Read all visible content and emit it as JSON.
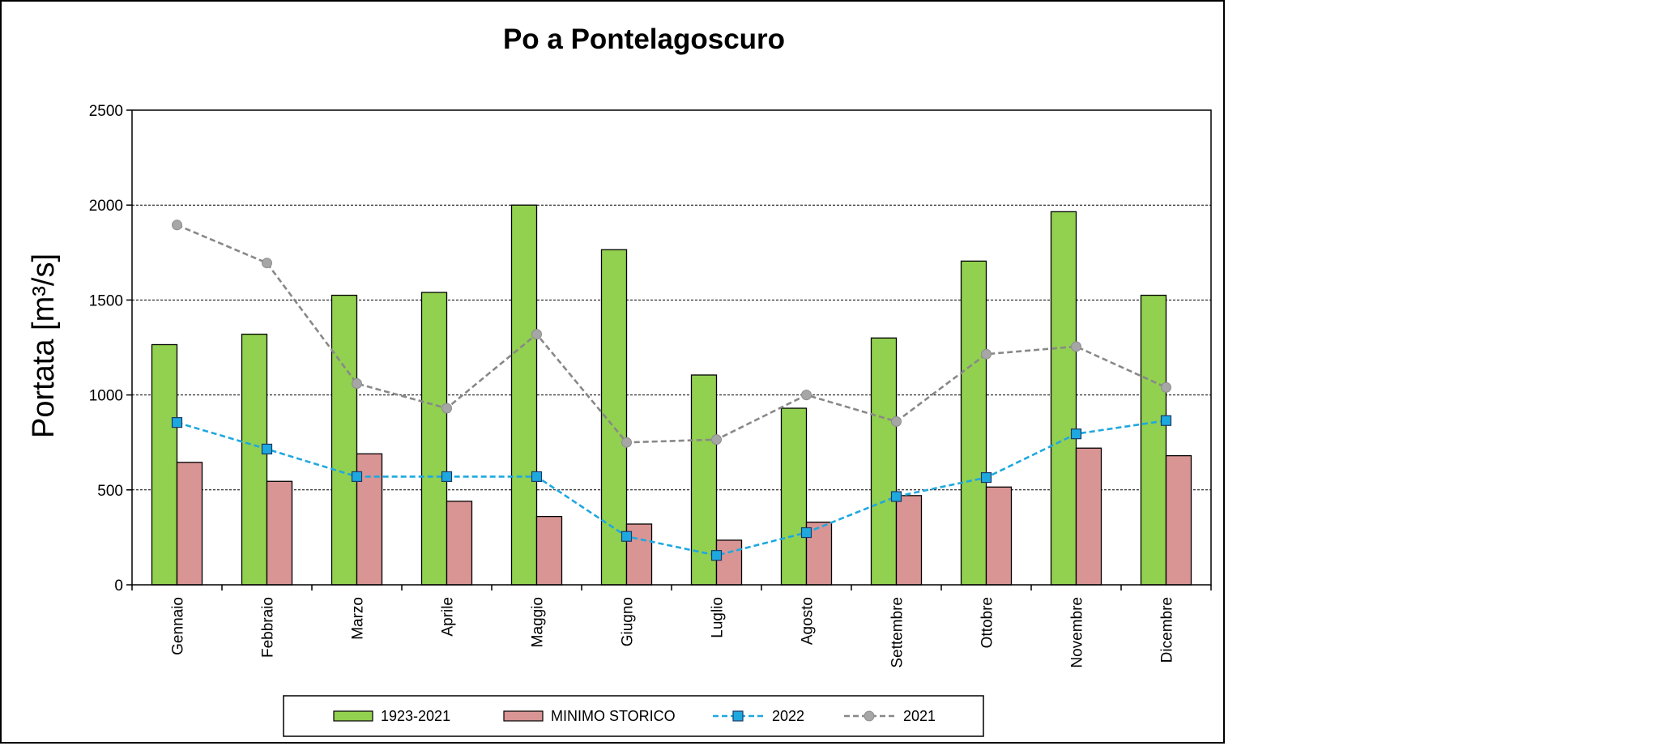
{
  "chart_data": {
    "type": "bar",
    "title": "Po a Pontelagoscuro",
    "xlabel": "",
    "ylabel": "Portata [m³/s]",
    "ylim": [
      0,
      2500
    ],
    "yticks": [
      "0",
      "500",
      "1000",
      "1500",
      "2000",
      "2500"
    ],
    "grid": true,
    "legend_position": "bottom",
    "categories": [
      "Gennaio",
      "Febbraio",
      "Marzo",
      "Aprile",
      "Maggio",
      "Giugno",
      "Luglio",
      "Agosto",
      "Settembre",
      "Ottobre",
      "Novembre",
      "Dicembre"
    ],
    "series": [
      {
        "name": "1923-2021",
        "kind": "bar",
        "color": "#92d050",
        "values": [
          1265,
          1320,
          1525,
          1540,
          2000,
          1765,
          1105,
          930,
          1300,
          1705,
          1965,
          1525
        ]
      },
      {
        "name": "MINIMO STORICO",
        "kind": "bar",
        "color": "#d99594",
        "values": [
          645,
          545,
          690,
          440,
          360,
          320,
          235,
          330,
          470,
          515,
          720,
          680
        ]
      },
      {
        "name": "2022",
        "kind": "line",
        "color": "#1ea8e0",
        "marker": "square",
        "values": [
          855,
          715,
          570,
          570,
          570,
          255,
          155,
          275,
          465,
          565,
          795,
          865
        ]
      },
      {
        "name": "2021",
        "kind": "line",
        "color": "#888888",
        "marker": "circle",
        "values": [
          1895,
          1695,
          1060,
          930,
          1320,
          750,
          765,
          1000,
          860,
          1215,
          1255,
          1040
        ]
      }
    ]
  }
}
